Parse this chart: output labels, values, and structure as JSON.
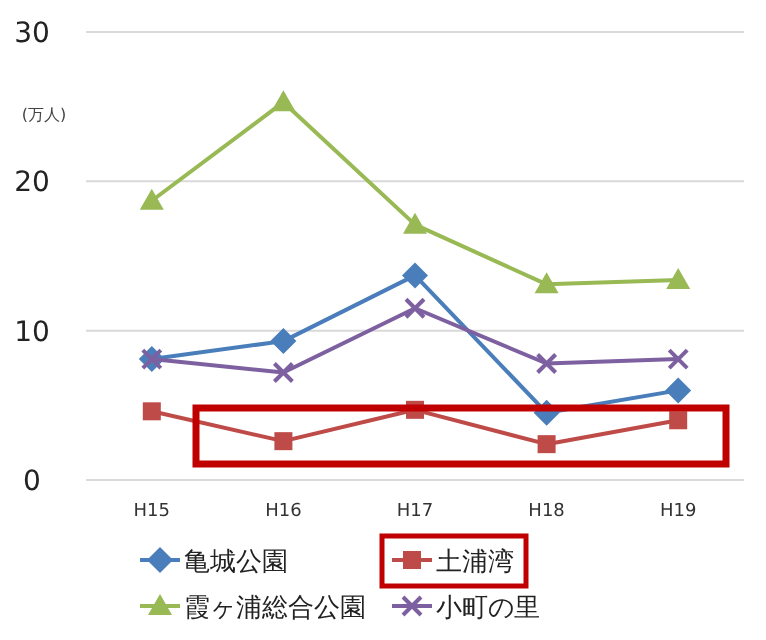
{
  "chart_data": {
    "type": "line",
    "ylabel": "(万人)",
    "categories": [
      "H15",
      "H16",
      "H17",
      "H18",
      "H19"
    ],
    "series": [
      {
        "name": "亀城公園",
        "color": "#4a7ebb",
        "marker": "diamond",
        "values": [
          8.1,
          9.3,
          13.7,
          4.5,
          6.0
        ]
      },
      {
        "name": "土浦湾",
        "color": "#be4b48",
        "marker": "square",
        "values": [
          4.6,
          2.6,
          4.7,
          2.4,
          4.0
        ]
      },
      {
        "name": "霞ヶ浦総合公園",
        "color": "#98b954",
        "marker": "triangle",
        "values": [
          18.7,
          25.3,
          17.1,
          13.1,
          13.4
        ]
      },
      {
        "name": "小町の里",
        "color": "#7d60a0",
        "marker": "cross",
        "values": [
          8.1,
          7.2,
          11.5,
          7.8,
          8.1
        ]
      }
    ],
    "ylim": [
      0,
      30
    ],
    "yticks": [
      0,
      10,
      20,
      30
    ],
    "grid": "y",
    "legend": "bottom",
    "line_style": "solid"
  }
}
